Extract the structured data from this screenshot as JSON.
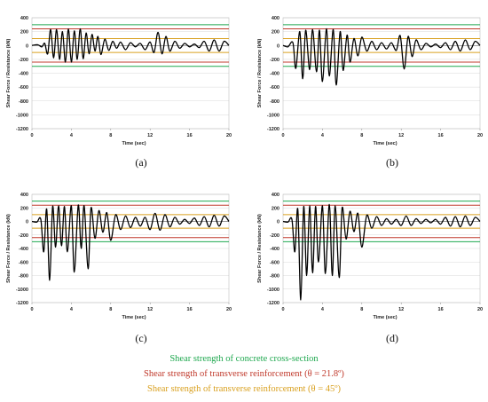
{
  "colors": {
    "concrete": "#1fa84f",
    "transverse_21_8": "#c0392b",
    "transverse_45": "#d9a01f",
    "response": "#000000",
    "grid": "#d9d9d9"
  },
  "legend": [
    {
      "text": "Shear strength of concrete cross-section",
      "color": "#1fa84f"
    },
    {
      "text": "Shear strength of transverse reinforcement (θ = 21.8º)",
      "color": "#c0392b"
    },
    {
      "text": "Shear strength of transverse reinforcement (θ = 45º)",
      "color": "#d9a01f"
    }
  ],
  "chart_data": [
    {
      "type": "line",
      "panel_label": "(a)",
      "xlabel": "Time (sec)",
      "ylabel": "Shear Force / Resistance (kN)",
      "xlim": [
        0,
        20
      ],
      "ylim": [
        -1200,
        400
      ],
      "xticks": [
        0,
        4,
        8,
        12,
        16,
        20
      ],
      "yticks": [
        400,
        200,
        0,
        -200,
        -400,
        -600,
        -800,
        -1000,
        -1200
      ],
      "xticklabels": [
        "0",
        "4",
        "8",
        "12",
        "16",
        "20"
      ],
      "yticklabels": [
        "400",
        "200",
        "0",
        "-200",
        "-400",
        "-600",
        "-800",
        "-1000",
        "-1200"
      ],
      "thresholds": [
        {
          "kind": "concrete",
          "values": [
            300,
            -300
          ]
        },
        {
          "kind": "transverse_21_8",
          "values": [
            240,
            -240
          ]
        },
        {
          "kind": "transverse_45",
          "values": [
            100,
            -100
          ]
        }
      ],
      "series": [
        {
          "x": [
            0,
            0.6,
            1.0,
            1.3,
            1.6,
            1.9,
            2.2,
            2.5,
            2.8,
            3.1,
            3.4,
            3.7,
            4.0,
            4.3,
            4.6,
            4.9,
            5.2,
            5.5,
            5.8,
            6.1,
            6.4,
            6.7,
            7.0,
            7.4,
            7.8,
            8.2,
            8.6,
            9.0,
            9.5,
            10,
            10.5,
            11,
            11.5,
            12,
            12.4,
            12.8,
            13.2,
            13.6,
            14,
            14.5,
            15,
            15.5,
            16,
            16.5,
            17,
            17.5,
            18,
            18.5,
            19,
            19.5,
            20
          ],
          "y": [
            0,
            10,
            -20,
            30,
            -120,
            230,
            -180,
            230,
            -200,
            200,
            -240,
            240,
            -240,
            210,
            -200,
            240,
            -190,
            180,
            -120,
            160,
            -80,
            130,
            -130,
            90,
            -70,
            60,
            -40,
            50,
            -60,
            40,
            -20,
            30,
            -60,
            50,
            -100,
            190,
            -120,
            130,
            -80,
            60,
            -40,
            30,
            -20,
            20,
            -30,
            60,
            -80,
            80,
            -80,
            60,
            0
          ]
        }
      ]
    },
    {
      "type": "line",
      "panel_label": "(b)",
      "xlabel": "Time (sec)",
      "ylabel": "Shear Force / Resistance (kN)",
      "xlim": [
        0,
        20
      ],
      "ylim": [
        -1200,
        400
      ],
      "xticks": [
        0,
        4,
        8,
        12,
        16,
        20
      ],
      "yticks": [
        400,
        200,
        0,
        -200,
        -400,
        -600,
        -800,
        -1000,
        -1200
      ],
      "xticklabels": [
        "0",
        "4",
        "8",
        "12",
        "16",
        "20"
      ],
      "yticklabels": [
        "400",
        "200",
        "0",
        "-200",
        "-400",
        "-600",
        "-800",
        "-1000",
        "-1200"
      ],
      "thresholds": [
        {
          "kind": "concrete",
          "values": [
            300,
            -300
          ]
        },
        {
          "kind": "transverse_21_8",
          "values": [
            240,
            -240
          ]
        },
        {
          "kind": "transverse_45",
          "values": [
            100,
            -100
          ]
        }
      ],
      "series": [
        {
          "x": [
            0,
            0.5,
            1.0,
            1.3,
            1.7,
            2.0,
            2.3,
            2.7,
            3.0,
            3.4,
            3.7,
            4.0,
            4.4,
            4.7,
            5.1,
            5.4,
            5.8,
            6.1,
            6.5,
            6.8,
            7.2,
            7.6,
            8.0,
            8.5,
            9.0,
            9.5,
            10,
            10.5,
            11,
            11.5,
            11.9,
            12.3,
            12.7,
            13.1,
            13.5,
            14,
            14.5,
            15,
            15.5,
            16,
            16.5,
            17,
            17.5,
            18,
            18.5,
            19,
            19.5,
            20
          ],
          "y": [
            0,
            -20,
            40,
            -330,
            200,
            -480,
            220,
            -350,
            230,
            -380,
            220,
            -520,
            240,
            -440,
            230,
            -570,
            200,
            -360,
            150,
            -240,
            100,
            -150,
            120,
            -80,
            60,
            -60,
            40,
            -50,
            40,
            -70,
            140,
            -340,
            130,
            -160,
            80,
            -60,
            30,
            -20,
            20,
            -30,
            40,
            -60,
            60,
            -80,
            80,
            -60,
            60,
            0
          ]
        }
      ]
    },
    {
      "type": "line",
      "panel_label": "(c)",
      "xlabel": "Time (sec)",
      "ylabel": "Shear Force / Resistance (kN)",
      "xlim": [
        0,
        20
      ],
      "ylim": [
        -1200,
        400
      ],
      "xticks": [
        0,
        4,
        8,
        12,
        16,
        20
      ],
      "yticks": [
        400,
        200,
        0,
        -200,
        -400,
        -600,
        -800,
        -1000,
        -1200
      ],
      "xticklabels": [
        "0",
        "4",
        "8",
        "12",
        "16",
        "20"
      ],
      "yticklabels": [
        "400",
        "200",
        "0",
        "-200",
        "-400",
        "-600",
        "-800",
        "-1000",
        "-1200"
      ],
      "thresholds": [
        {
          "kind": "concrete",
          "values": [
            300,
            -300
          ]
        },
        {
          "kind": "transverse_21_8",
          "values": [
            240,
            -240
          ]
        },
        {
          "kind": "transverse_45",
          "values": [
            100,
            -100
          ]
        }
      ],
      "series": [
        {
          "x": [
            0,
            0.5,
            0.9,
            1.2,
            1.5,
            1.8,
            2.1,
            2.4,
            2.7,
            3.0,
            3.3,
            3.6,
            4.0,
            4.3,
            4.7,
            5.0,
            5.3,
            5.7,
            6.0,
            6.4,
            6.8,
            7.2,
            7.6,
            8.0,
            8.5,
            9.0,
            9.5,
            10,
            10.5,
            11,
            11.5,
            12,
            12.5,
            13,
            13.5,
            14,
            14.5,
            15,
            15.5,
            16,
            16.5,
            17,
            17.5,
            18,
            18.5,
            19,
            19.5,
            20
          ],
          "y": [
            0,
            -10,
            30,
            -450,
            180,
            -870,
            220,
            -380,
            230,
            -360,
            220,
            -450,
            230,
            -750,
            240,
            -400,
            230,
            -700,
            200,
            -250,
            160,
            -160,
            130,
            -280,
            100,
            -120,
            80,
            -90,
            60,
            -70,
            60,
            -120,
            120,
            -130,
            100,
            -80,
            60,
            -40,
            30,
            -30,
            50,
            -60,
            70,
            -80,
            90,
            -70,
            80,
            0
          ]
        }
      ]
    },
    {
      "type": "line",
      "panel_label": "(d)",
      "xlabel": "Time (sec)",
      "ylabel": "Shear Force / Resistance (kN)",
      "xlim": [
        0,
        20
      ],
      "ylim": [
        -1200,
        400
      ],
      "xticks": [
        0,
        4,
        8,
        12,
        16,
        20
      ],
      "yticks": [
        400,
        200,
        0,
        -200,
        -400,
        -600,
        -800,
        -1000,
        -1200
      ],
      "xticklabels": [
        "0",
        "4",
        "8",
        "12",
        "16",
        "20"
      ],
      "yticklabels": [
        "400",
        "200",
        "0",
        "-200",
        "-400",
        "-600",
        "-800",
        "-1000",
        "-1200"
      ],
      "thresholds": [
        {
          "kind": "concrete",
          "values": [
            300,
            -300
          ]
        },
        {
          "kind": "transverse_21_8",
          "values": [
            240,
            -240
          ]
        },
        {
          "kind": "transverse_45",
          "values": [
            100,
            -100
          ]
        }
      ],
      "series": [
        {
          "x": [
            0,
            0.5,
            0.9,
            1.2,
            1.5,
            1.8,
            2.1,
            2.4,
            2.7,
            3.0,
            3.3,
            3.6,
            4.0,
            4.3,
            4.7,
            5.0,
            5.3,
            5.7,
            6.0,
            6.4,
            6.8,
            7.2,
            7.6,
            8.0,
            8.5,
            9.0,
            9.5,
            10,
            10.5,
            11,
            11.5,
            12,
            12.5,
            13,
            13.5,
            14,
            14.5,
            15,
            15.5,
            16,
            16.5,
            17,
            17.5,
            18,
            18.5,
            19,
            19.5,
            20
          ],
          "y": [
            0,
            -10,
            30,
            -450,
            180,
            -1160,
            220,
            -800,
            230,
            -760,
            220,
            -600,
            230,
            -770,
            250,
            -800,
            230,
            -830,
            200,
            -260,
            150,
            -150,
            120,
            -380,
            90,
            -100,
            70,
            -60,
            40,
            -40,
            30,
            -60,
            80,
            -60,
            40,
            -30,
            30,
            -20,
            30,
            -40,
            60,
            -70,
            70,
            -80,
            80,
            -60,
            60,
            0
          ]
        }
      ]
    }
  ]
}
